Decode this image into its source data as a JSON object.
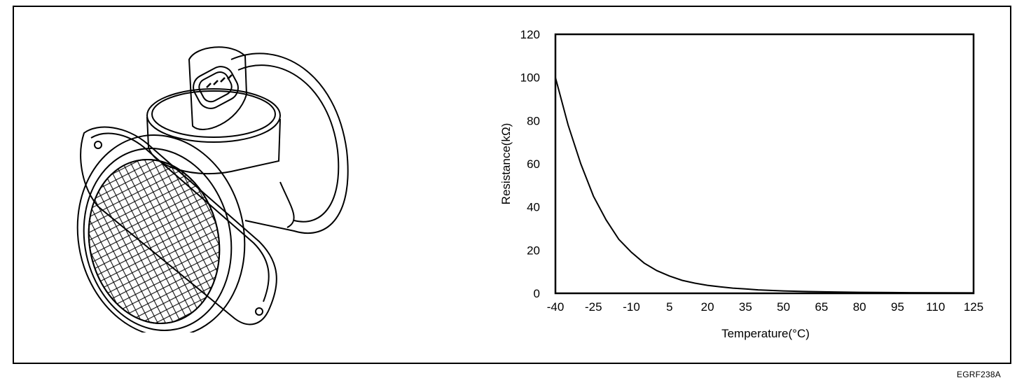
{
  "figure_code": "EGRF238A",
  "illustration": {
    "subject": "air flow sensor with intake air temperature sensor",
    "icon": "mass-air-flow-sensor-drawing"
  },
  "chart_data": {
    "type": "line",
    "title": "",
    "xlabel": "Temperature(°C)",
    "ylabel": "Resistance(kΩ)",
    "xlim": [
      -40,
      125
    ],
    "ylim": [
      0,
      120
    ],
    "x_ticks": [
      -40,
      -25,
      -10,
      5,
      20,
      35,
      50,
      65,
      80,
      95,
      110,
      125
    ],
    "y_ticks": [
      0,
      20,
      40,
      60,
      80,
      100,
      120
    ],
    "grid": false,
    "legend": "none",
    "series": [
      {
        "x": [
          -40,
          -35,
          -30,
          -25,
          -20,
          -15,
          -10,
          -5,
          0,
          5,
          10,
          15,
          20,
          25,
          30,
          35,
          40,
          50,
          60,
          70,
          80,
          100,
          125
        ],
        "y": [
          100,
          78,
          60,
          45,
          34,
          25,
          19,
          14,
          10.5,
          8,
          6,
          4.7,
          3.7,
          3,
          2.4,
          2,
          1.6,
          1.1,
          0.8,
          0.6,
          0.45,
          0.3,
          0.2
        ]
      }
    ]
  }
}
